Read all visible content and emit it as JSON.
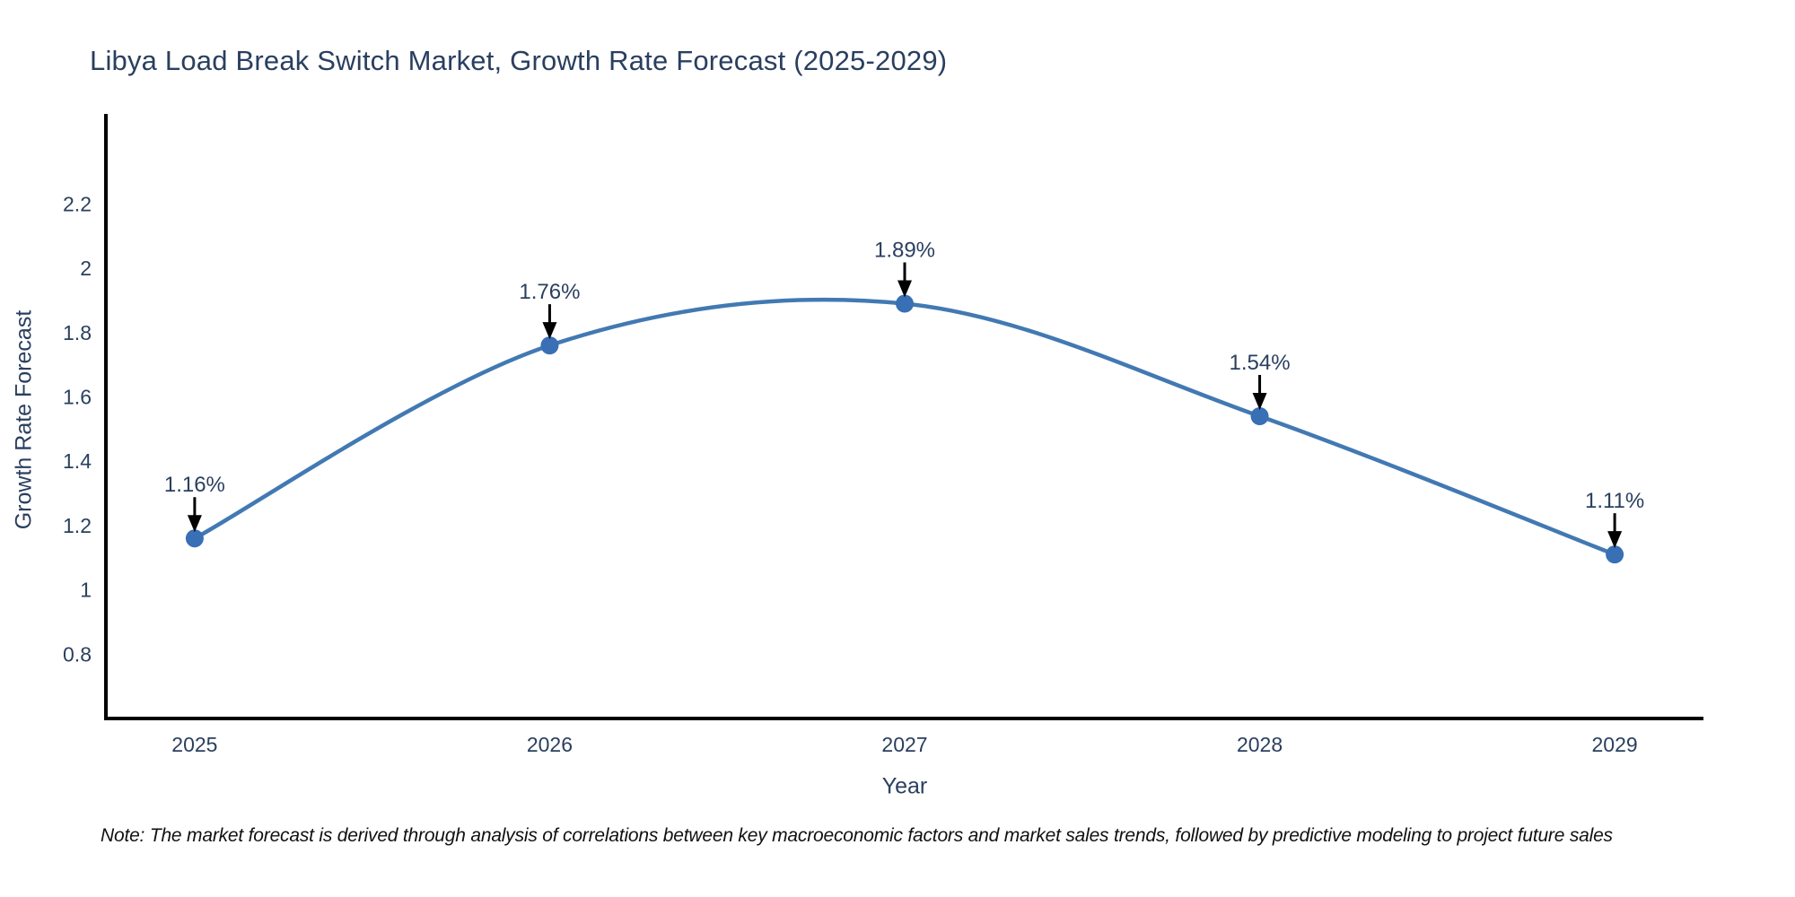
{
  "title": {
    "text": "Libya Load Break Switch Market, Growth Rate Forecast (2025-2029)"
  },
  "note": {
    "text": "Note: The market forecast is derived through analysis of correlations between key macroeconomic factors and market sales trends, followed by predictive modeling to project future sales"
  },
  "chart_data": {
    "type": "line",
    "title": "Libya Load Break Switch Market, Growth Rate Forecast (2025-2029)",
    "xlabel": "Year",
    "ylabel": "Growth Rate Forecast",
    "x": [
      2025,
      2026,
      2027,
      2028,
      2029
    ],
    "series": [
      {
        "name": "Growth Rate Forecast",
        "values": [
          1.16,
          1.76,
          1.89,
          1.54,
          1.11
        ]
      }
    ],
    "point_labels": [
      "1.16%",
      "1.76%",
      "1.89%",
      "1.54%",
      "1.11%"
    ],
    "xtick_labels": [
      "2025",
      "2026",
      "2027",
      "2028",
      "2029"
    ],
    "ytick_labels": [
      "0.8",
      "1",
      "1.2",
      "1.4",
      "1.6",
      "1.8",
      "2",
      "2.2"
    ],
    "xlim": [
      2024.75,
      2029.25
    ],
    "ylim": [
      0.6,
      2.48
    ],
    "grid": false,
    "legend": "none",
    "line_shape": "spline",
    "colors": {
      "line": "#4279b2",
      "marker": "#386fb5",
      "axis": "#000000",
      "text": "#2a3f5f",
      "arrow": "#000000",
      "note_text": "#111111",
      "background": "#ffffff"
    }
  }
}
